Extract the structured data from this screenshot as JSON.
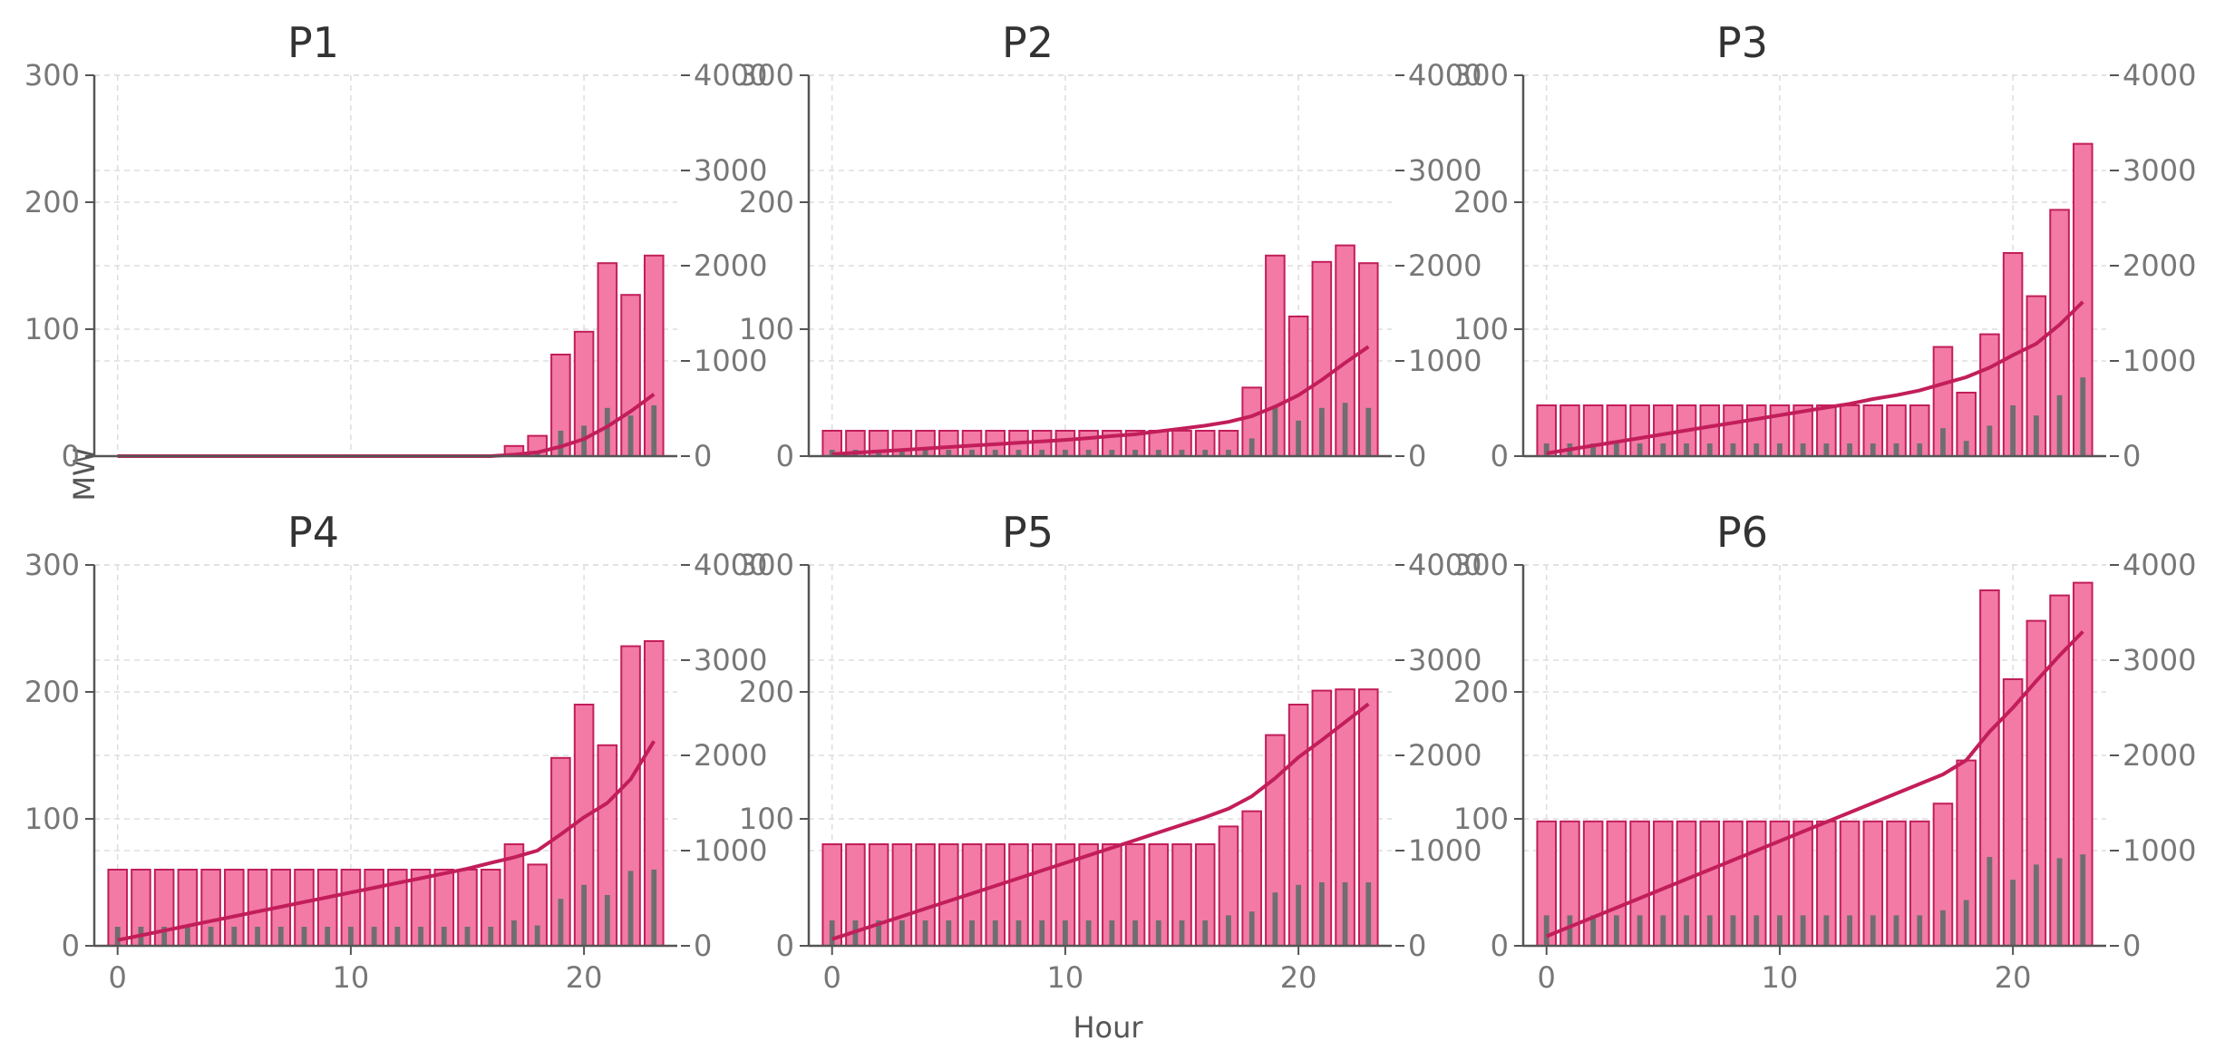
{
  "chart_data": {
    "type": "bar",
    "shared_xlabel": "Hour",
    "shared_ylabel": "MW",
    "colors": {
      "bar_fill": "#f27aa4",
      "bar_edge": "#c21e5a",
      "line": "#c21e5a",
      "small_bar": "#6e6e6e"
    },
    "left_ylim": [
      0,
      300
    ],
    "left_yticks": [
      0,
      100,
      200,
      300
    ],
    "right_ylim": [
      0,
      4000
    ],
    "right_yticks": [
      0,
      1000,
      2000,
      3000,
      4000
    ],
    "xlim": [
      -1,
      24
    ],
    "xticks": [
      0,
      10,
      20
    ],
    "panels": [
      {
        "title": "P1",
        "hours": [
          0,
          1,
          2,
          3,
          4,
          5,
          6,
          7,
          8,
          9,
          10,
          11,
          12,
          13,
          14,
          15,
          16,
          17,
          18,
          19,
          20,
          21,
          22,
          23
        ],
        "bars": [
          0,
          0,
          0,
          0,
          0,
          0,
          0,
          0,
          0,
          0,
          0,
          0,
          0,
          0,
          0,
          0,
          0,
          8,
          16,
          80,
          98,
          152,
          127,
          158
        ],
        "small_bars": [
          0,
          0,
          0,
          0,
          0,
          0,
          0,
          0,
          0,
          0,
          0,
          0,
          0,
          0,
          0,
          0,
          0,
          2,
          4,
          20,
          24,
          38,
          32,
          40
        ],
        "line": [
          0,
          0,
          0,
          0,
          0,
          0,
          0,
          0,
          0,
          0,
          0,
          0,
          0,
          0,
          0,
          0,
          0,
          15,
          40,
          100,
          180,
          310,
          470,
          650
        ]
      },
      {
        "title": "P2",
        "hours": [
          0,
          1,
          2,
          3,
          4,
          5,
          6,
          7,
          8,
          9,
          10,
          11,
          12,
          13,
          14,
          15,
          16,
          17,
          18,
          19,
          20,
          21,
          22,
          23
        ],
        "bars": [
          20,
          20,
          20,
          20,
          20,
          20,
          20,
          20,
          20,
          20,
          20,
          20,
          20,
          20,
          20,
          20,
          20,
          20,
          54,
          158,
          110,
          153,
          166,
          152
        ],
        "small_bars": [
          5,
          5,
          5,
          5,
          5,
          5,
          5,
          5,
          5,
          5,
          5,
          5,
          5,
          5,
          5,
          5,
          5,
          5,
          14,
          40,
          28,
          38,
          42,
          38
        ],
        "line": [
          20,
          35,
          50,
          65,
          80,
          95,
          110,
          125,
          140,
          155,
          170,
          190,
          210,
          230,
          260,
          290,
          320,
          360,
          420,
          520,
          640,
          800,
          980,
          1150
        ]
      },
      {
        "title": "P3",
        "hours": [
          0,
          1,
          2,
          3,
          4,
          5,
          6,
          7,
          8,
          9,
          10,
          11,
          12,
          13,
          14,
          15,
          16,
          17,
          18,
          19,
          20,
          21,
          22,
          23
        ],
        "bars": [
          40,
          40,
          40,
          40,
          40,
          40,
          40,
          40,
          40,
          40,
          40,
          40,
          40,
          40,
          40,
          40,
          40,
          86,
          50,
          96,
          160,
          126,
          194,
          246
        ],
        "small_bars": [
          10,
          10,
          10,
          10,
          10,
          10,
          10,
          10,
          10,
          10,
          10,
          10,
          10,
          10,
          10,
          10,
          10,
          22,
          12,
          24,
          40,
          32,
          48,
          62
        ],
        "line": [
          30,
          70,
          110,
          150,
          190,
          230,
          270,
          310,
          350,
          390,
          430,
          470,
          510,
          550,
          600,
          640,
          690,
          760,
          830,
          930,
          1060,
          1180,
          1380,
          1620
        ]
      },
      {
        "title": "P4",
        "hours": [
          0,
          1,
          2,
          3,
          4,
          5,
          6,
          7,
          8,
          9,
          10,
          11,
          12,
          13,
          14,
          15,
          16,
          17,
          18,
          19,
          20,
          21,
          22,
          23
        ],
        "bars": [
          60,
          60,
          60,
          60,
          60,
          60,
          60,
          60,
          60,
          60,
          60,
          60,
          60,
          60,
          60,
          60,
          60,
          80,
          64,
          148,
          190,
          158,
          236,
          240
        ],
        "small_bars": [
          15,
          15,
          15,
          15,
          15,
          15,
          15,
          15,
          15,
          15,
          15,
          15,
          15,
          15,
          15,
          15,
          15,
          20,
          16,
          37,
          48,
          40,
          59,
          60
        ],
        "line": [
          60,
          110,
          160,
          210,
          260,
          310,
          360,
          410,
          460,
          510,
          560,
          610,
          660,
          710,
          760,
          810,
          870,
          930,
          1000,
          1170,
          1350,
          1500,
          1750,
          2150
        ]
      },
      {
        "title": "P5",
        "hours": [
          0,
          1,
          2,
          3,
          4,
          5,
          6,
          7,
          8,
          9,
          10,
          11,
          12,
          13,
          14,
          15,
          16,
          17,
          18,
          19,
          20,
          21,
          22,
          23
        ],
        "bars": [
          80,
          80,
          80,
          80,
          80,
          80,
          80,
          80,
          80,
          80,
          80,
          80,
          80,
          80,
          80,
          80,
          80,
          94,
          106,
          166,
          190,
          201,
          202,
          202
        ],
        "small_bars": [
          20,
          20,
          20,
          20,
          20,
          20,
          20,
          20,
          20,
          20,
          20,
          20,
          20,
          20,
          20,
          20,
          20,
          24,
          27,
          42,
          48,
          50,
          50,
          50
        ],
        "line": [
          70,
          150,
          230,
          310,
          390,
          470,
          550,
          630,
          710,
          790,
          870,
          950,
          1030,
          1110,
          1190,
          1270,
          1350,
          1440,
          1570,
          1760,
          1980,
          2160,
          2350,
          2540
        ]
      },
      {
        "title": "P6",
        "hours": [
          0,
          1,
          2,
          3,
          4,
          5,
          6,
          7,
          8,
          9,
          10,
          11,
          12,
          13,
          14,
          15,
          16,
          17,
          18,
          19,
          20,
          21,
          22,
          23
        ],
        "bars": [
          98,
          98,
          98,
          98,
          98,
          98,
          98,
          98,
          98,
          98,
          98,
          98,
          98,
          98,
          98,
          98,
          98,
          112,
          146,
          280,
          210,
          256,
          276,
          286
        ],
        "small_bars": [
          24,
          24,
          24,
          24,
          24,
          24,
          24,
          24,
          24,
          24,
          24,
          24,
          24,
          24,
          24,
          24,
          24,
          28,
          36,
          70,
          52,
          64,
          69,
          72
        ],
        "line": [
          100,
          200,
          300,
          400,
          500,
          600,
          700,
          800,
          900,
          1000,
          1100,
          1200,
          1300,
          1400,
          1500,
          1600,
          1700,
          1800,
          1950,
          2250,
          2500,
          2780,
          3050,
          3300
        ]
      }
    ]
  }
}
